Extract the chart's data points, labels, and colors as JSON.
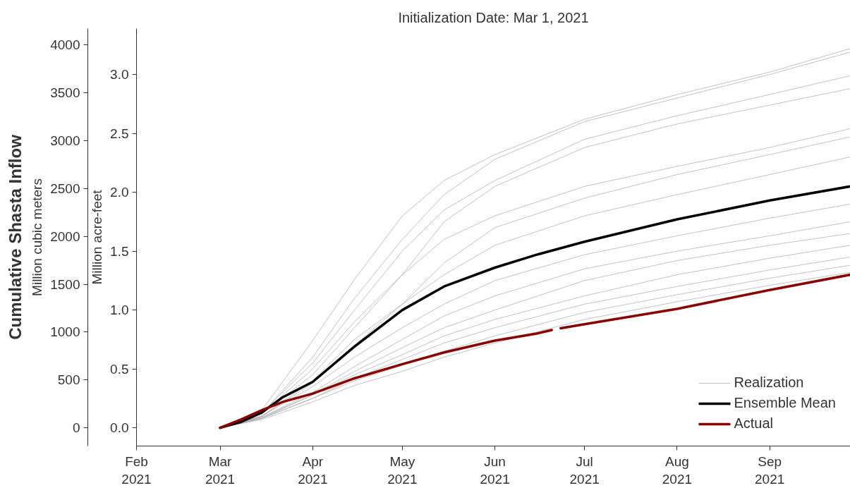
{
  "chart_data": {
    "type": "line",
    "title": "Initialization Date: Mar 1, 2021",
    "ylabel": "Million acre-feet",
    "y2label": "Million cubic meters",
    "annotations": [
      "Cumulative Shasta Inflow"
    ],
    "x": [
      "2021-03-01",
      "2021-03-15",
      "2021-04-01",
      "2021-04-15",
      "2021-05-01",
      "2021-05-15",
      "2021-06-01",
      "2021-07-01",
      "2021-08-01",
      "2021-09-01",
      "2021-09-28"
    ],
    "series": [
      {
        "name": "Realization",
        "color": "#a6a6a6",
        "values": [
          0,
          0.15,
          0.74,
          1.26,
          1.8,
          2.1,
          2.32,
          2.62,
          2.83,
          3.02,
          3.22
        ]
      },
      {
        "color": "#a6a6a6",
        "values": [
          0,
          0.12,
          0.6,
          1.1,
          1.6,
          1.98,
          2.28,
          2.6,
          2.8,
          3.0,
          3.19
        ]
      },
      {
        "color": "#a6a6a6",
        "values": [
          0,
          0.13,
          0.55,
          1.0,
          1.5,
          1.85,
          2.1,
          2.45,
          2.65,
          2.83,
          2.99
        ]
      },
      {
        "color": "#a6a6a6",
        "values": [
          0,
          0.12,
          0.45,
          0.85,
          1.3,
          1.75,
          2.05,
          2.38,
          2.58,
          2.74,
          2.88
        ]
      },
      {
        "color": "#a6a6a6",
        "values": [
          0,
          0.12,
          0.5,
          0.9,
          1.3,
          1.6,
          1.8,
          2.05,
          2.22,
          2.38,
          2.54
        ]
      },
      {
        "color": "#a6a6a6",
        "values": [
          0,
          0.1,
          0.4,
          0.75,
          1.05,
          1.4,
          1.7,
          1.95,
          2.15,
          2.32,
          2.47
        ]
      },
      {
        "color": "#a6a6a6",
        "values": [
          0,
          0.1,
          0.38,
          0.7,
          1.05,
          1.3,
          1.55,
          1.8,
          1.98,
          2.15,
          2.3
        ]
      },
      {
        "color": "#a6a6a6",
        "values": [
          0,
          0.1,
          0.35,
          0.6,
          0.85,
          1.05,
          1.25,
          1.47,
          1.63,
          1.78,
          1.9
        ]
      },
      {
        "color": "#a6a6a6",
        "values": [
          0,
          0.09,
          0.3,
          0.52,
          0.75,
          0.95,
          1.12,
          1.35,
          1.5,
          1.63,
          1.75
        ]
      },
      {
        "color": "#a6a6a6",
        "values": [
          0,
          0.09,
          0.28,
          0.48,
          0.68,
          0.85,
          1.0,
          1.25,
          1.42,
          1.55,
          1.65
        ]
      },
      {
        "color": "#a6a6a6",
        "values": [
          0,
          0.08,
          0.28,
          0.45,
          0.62,
          0.78,
          0.92,
          1.12,
          1.3,
          1.44,
          1.55
        ]
      },
      {
        "color": "#a6a6a6",
        "values": [
          0,
          0.08,
          0.25,
          0.42,
          0.58,
          0.72,
          0.85,
          1.05,
          1.2,
          1.34,
          1.45
        ]
      },
      {
        "color": "#a6a6a6",
        "values": [
          0,
          0.08,
          0.25,
          0.4,
          0.53,
          0.65,
          0.78,
          0.98,
          1.13,
          1.27,
          1.38
        ]
      },
      {
        "color": "#a6a6a6",
        "values": [
          0,
          0.07,
          0.22,
          0.36,
          0.48,
          0.6,
          0.72,
          0.92,
          1.07,
          1.21,
          1.32
        ]
      },
      {
        "name": "Ensemble Mean",
        "color": "#000000",
        "x": [
          "2021-03-01",
          "2021-03-08",
          "2021-03-15",
          "2021-03-22",
          "2021-04-01",
          "2021-04-15",
          "2021-05-01",
          "2021-05-15",
          "2021-06-01",
          "2021-06-15",
          "2021-07-01",
          "2021-08-01",
          "2021-09-01",
          "2021-09-28"
        ],
        "values": [
          0,
          0.05,
          0.13,
          0.26,
          0.39,
          0.69,
          1.0,
          1.2,
          1.36,
          1.47,
          1.58,
          1.77,
          1.93,
          2.05
        ]
      },
      {
        "name": "Actual",
        "color": "#8b0000",
        "x": [
          "2021-03-01",
          "2021-03-08",
          "2021-03-15",
          "2021-03-22",
          "2021-04-01",
          "2021-04-15",
          "2021-05-01",
          "2021-05-15",
          "2021-06-01",
          "2021-06-15",
          "2021-06-20",
          "2021-06-21",
          "2021-06-23",
          "2021-07-01",
          "2021-08-01",
          "2021-09-01",
          "2021-09-28"
        ],
        "values": [
          0,
          0.07,
          0.15,
          0.22,
          0.29,
          0.42,
          0.54,
          0.64,
          0.74,
          0.8,
          0.83,
          null,
          0.845,
          0.88,
          1.01,
          1.17,
          1.3
        ]
      }
    ],
    "xlim": [
      "2021-02-01",
      "2021-09-28"
    ],
    "xticks": [
      {
        "value": "2021-02-01",
        "label": "Feb\n2021"
      },
      {
        "value": "2021-03-01",
        "label": "Mar\n2021"
      },
      {
        "value": "2021-04-01",
        "label": "Apr\n2021"
      },
      {
        "value": "2021-05-01",
        "label": "May\n2021"
      },
      {
        "value": "2021-06-01",
        "label": "Jun\n2021"
      },
      {
        "value": "2021-07-01",
        "label": "Jul\n2021"
      },
      {
        "value": "2021-08-01",
        "label": "Aug\n2021"
      },
      {
        "value": "2021-09-01",
        "label": "Sep\n2021"
      }
    ],
    "ylim": [
      -0.155,
      3.39
    ],
    "yticks": [
      {
        "value": 0,
        "label": "0.0"
      },
      0.5,
      {
        "value": 1,
        "label": "1.0"
      },
      1.5,
      {
        "value": 2,
        "label": "2.0"
      },
      2.5,
      {
        "value": 3,
        "label": "3.0"
      }
    ],
    "y2lim": [
      -190,
      4170
    ],
    "y2ticks": [
      0,
      500,
      1000,
      1500,
      2000,
      2500,
      3000,
      3500,
      4000
    ],
    "grid": false,
    "legend": "bottom right",
    "marker": "none",
    "line_style": "solid"
  }
}
